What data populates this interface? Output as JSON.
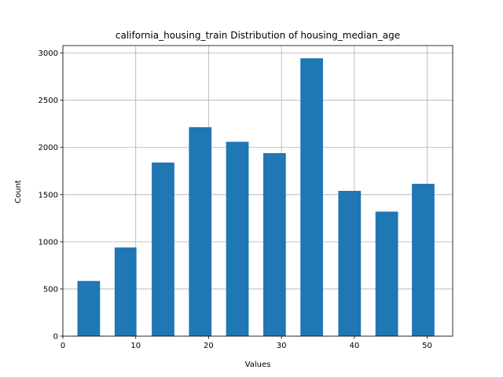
{
  "chart_data": {
    "type": "bar",
    "title": "california_housing_train Distribution of housing_median_age",
    "xlabel": "Values",
    "ylabel": "Count",
    "xlim": [
      0,
      53.5
    ],
    "ylim": [
      0,
      3080
    ],
    "xticks": [
      0,
      10,
      20,
      30,
      40,
      50
    ],
    "yticks": [
      0,
      500,
      1000,
      1500,
      2000,
      2500,
      3000
    ],
    "grid": true,
    "bar_color": "#1f77b4",
    "bins": [
      {
        "start": 2.0,
        "end": 5.1,
        "value": 585
      },
      {
        "start": 7.1,
        "end": 10.1,
        "value": 940
      },
      {
        "start": 12.2,
        "end": 15.3,
        "value": 1840
      },
      {
        "start": 17.3,
        "end": 20.4,
        "value": 2215
      },
      {
        "start": 22.4,
        "end": 25.5,
        "value": 2060
      },
      {
        "start": 27.5,
        "end": 30.6,
        "value": 1940
      },
      {
        "start": 32.6,
        "end": 35.7,
        "value": 2945
      },
      {
        "start": 37.8,
        "end": 40.9,
        "value": 1540
      },
      {
        "start": 42.9,
        "end": 46.0,
        "value": 1320
      },
      {
        "start": 47.9,
        "end": 51.0,
        "value": 1615
      }
    ]
  }
}
